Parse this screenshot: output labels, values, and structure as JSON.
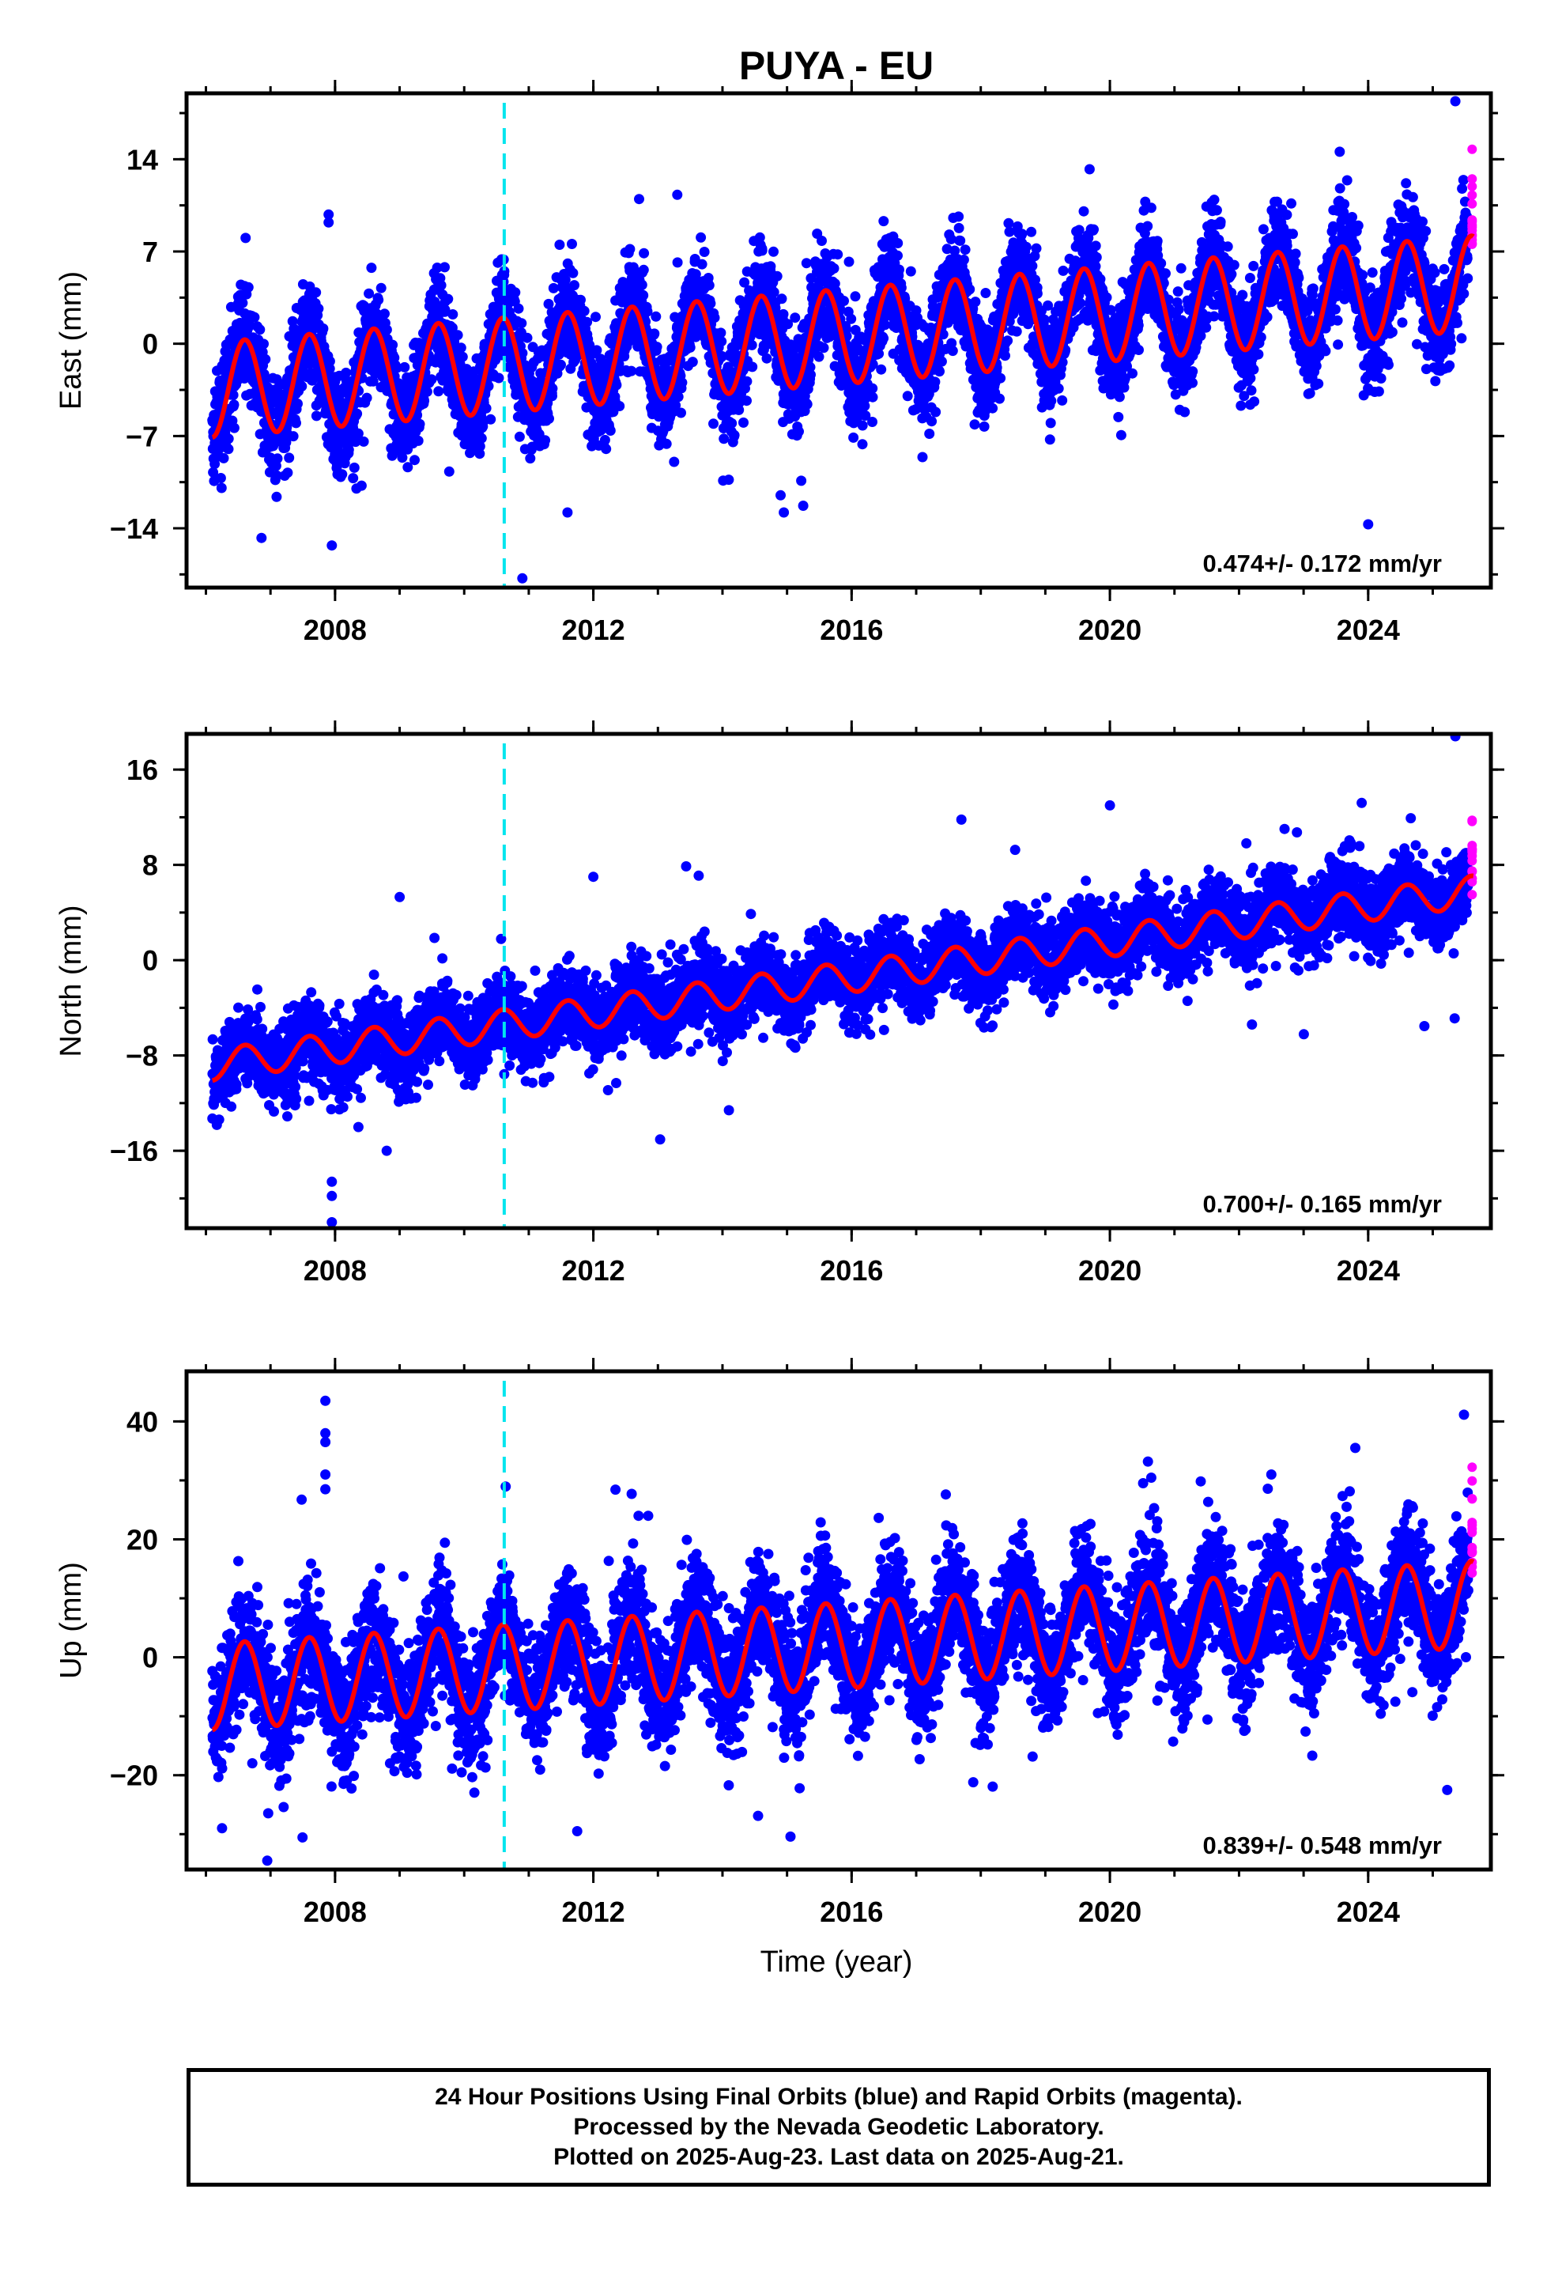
{
  "title": "PUYA - EU",
  "xlabel": "Time (year)",
  "footer": {
    "line1": "24 Hour Positions Using Final Orbits (blue) and Rapid Orbits (magenta).",
    "line2": "Processed by the Nevada Geodetic Laboratory.",
    "line3": "Plotted on 2025-Aug-23. Last data on 2025-Aug-21."
  },
  "colors": {
    "final_orbits": "#0000ff",
    "rapid_orbits": "#ff00ff",
    "model": "#ff0000",
    "equipment_change": "#00e5ee"
  },
  "chart_data": [
    {
      "type": "scatter",
      "name": "east",
      "ylabel": "East (mm)",
      "rate_text": "0.474+/- 0.172 mm/yr",
      "xlim": [
        2005.7,
        2025.9
      ],
      "ylim": [
        -18.5,
        19
      ],
      "yticks": [
        -14,
        -7,
        0,
        7,
        14
      ],
      "xticks": [
        2008,
        2012,
        2016,
        2020,
        2024
      ],
      "x_minor_step": 1,
      "y_minor_step": 3.5,
      "equipment_change_x": 2010.62,
      "start": 2006.1,
      "end": 2025.63,
      "rapid_start": 2025.55,
      "trend": {
        "at_start": -3.5,
        "at_end": 4.6
      },
      "annual_amplitude": 3.6,
      "annual_phase": 0.0,
      "noise": 1.9,
      "outliers": [
        [
          2007.9,
          9.8
        ],
        [
          2007.9,
          9.2
        ],
        [
          2007.95,
          -15.3
        ],
        [
          2010.9,
          -17.8
        ],
        [
          2011.6,
          -12.8
        ],
        [
          2014.9,
          -11.5
        ],
        [
          2014.95,
          -12.8
        ],
        [
          2024.0,
          -13.7
        ],
        [
          2025.35,
          18.4
        ],
        [
          2013.3,
          11.3
        ]
      ]
    },
    {
      "type": "scatter",
      "name": "north",
      "ylabel": "North (mm)",
      "rate_text": "0.700+/- 0.165 mm/yr",
      "xlim": [
        2005.7,
        2025.9
      ],
      "ylim": [
        -22.5,
        19
      ],
      "yticks": [
        -16,
        -8,
        0,
        8,
        16
      ],
      "xticks": [
        2008,
        2012,
        2016,
        2020,
        2024
      ],
      "x_minor_step": 1,
      "y_minor_step": 4,
      "equipment_change_x": 2010.62,
      "start": 2006.1,
      "end": 2025.63,
      "rapid_start": 2025.55,
      "trend": {
        "at_start": -8.8,
        "at_end": 5.8
      },
      "annual_amplitude": 1.3,
      "annual_phase": 0.0,
      "noise": 1.6,
      "outliers": [
        [
          2007.95,
          -18.6
        ],
        [
          2007.95,
          -19.8
        ],
        [
          2007.95,
          -22.0
        ],
        [
          2025.35,
          18.8
        ],
        [
          2020.0,
          13.0
        ],
        [
          2023.9,
          13.2
        ],
        [
          2017.7,
          11.8
        ],
        [
          2012.0,
          7.0
        ],
        [
          2009.0,
          5.3
        ],
        [
          2022.2,
          -5.4
        ],
        [
          2014.1,
          -12.6
        ],
        [
          2008.8,
          -16.0
        ]
      ]
    },
    {
      "type": "scatter",
      "name": "up",
      "ylabel": "Up (mm)",
      "rate_text": "0.839+/- 0.548 mm/yr",
      "xlim": [
        2005.7,
        2025.9
      ],
      "ylim": [
        -36,
        48.5
      ],
      "yticks": [
        -20,
        0,
        20,
        40
      ],
      "xticks": [
        2008,
        2012,
        2016,
        2020,
        2024
      ],
      "x_minor_step": 1,
      "y_minor_step": 10,
      "equipment_change_x": 2010.62,
      "start": 2006.1,
      "end": 2025.63,
      "rapid_start": 2025.55,
      "trend": {
        "at_start": -5.0,
        "at_end": 9.0
      },
      "annual_amplitude": 7.3,
      "annual_phase": 0.0,
      "noise": 5.0,
      "outliers": [
        [
          2007.85,
          43.5
        ],
        [
          2007.85,
          38.0
        ],
        [
          2007.85,
          36.5
        ],
        [
          2007.85,
          31.0
        ],
        [
          2007.85,
          28.5
        ],
        [
          2006.95,
          -34.5
        ],
        [
          2011.75,
          -29.5
        ],
        [
          2006.25,
          -29.0
        ],
        [
          2023.8,
          35.5
        ],
        [
          2022.5,
          31.0
        ],
        [
          2012.7,
          24.0
        ],
        [
          2012.85,
          24.0
        ]
      ]
    }
  ]
}
